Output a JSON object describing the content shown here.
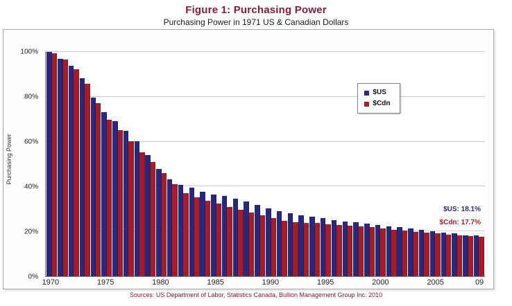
{
  "page": {
    "title": "Figure 1: Purchasing Power",
    "subtitle": "Purchasing Power in 1971 US & Canadian Dollars",
    "source": "Sources: US Department of Labor, Statistics Canada, Bullion Management Group Inc. 2010",
    "colors": {
      "title": "#8B1A33",
      "source": "#8B1A33"
    }
  },
  "chart_data": {
    "type": "bar",
    "title": "Figure 1: Purchasing Power",
    "subtitle": "Purchasing Power in 1971 US & Canadian Dollars",
    "xlabel": "",
    "ylabel": "Purchasing Power",
    "ylim": [
      0,
      100
    ],
    "grid": true,
    "legend_position": "upper-right",
    "y_ticks": [
      {
        "label": "0%",
        "value": 0
      },
      {
        "label": "20%",
        "value": 20
      },
      {
        "label": "40%",
        "value": 40
      },
      {
        "label": "60%",
        "value": 60
      },
      {
        "label": "80%",
        "value": 80
      },
      {
        "label": "100%",
        "value": 100
      }
    ],
    "categories": [
      "1970",
      "1971",
      "1972",
      "1973",
      "1974",
      "1975",
      "1976",
      "1977",
      "1978",
      "1979",
      "1980",
      "1981",
      "1982",
      "1983",
      "1984",
      "1985",
      "1986",
      "1987",
      "1988",
      "1989",
      "1990",
      "1991",
      "1992",
      "1993",
      "1994",
      "1995",
      "1996",
      "1997",
      "1998",
      "1999",
      "2000",
      "2001",
      "2002",
      "2003",
      "2004",
      "2005",
      "2006",
      "2007",
      "2008",
      "2009"
    ],
    "x_ticks": [
      {
        "label": "1970",
        "index": 0
      },
      {
        "label": "1975",
        "index": 5
      },
      {
        "label": "1980",
        "index": 10
      },
      {
        "label": "1985",
        "index": 15
      },
      {
        "label": "1990",
        "index": 20
      },
      {
        "label": "1995",
        "index": 25
      },
      {
        "label": "2000",
        "index": 30
      },
      {
        "label": "2005",
        "index": 35
      },
      {
        "label": "09",
        "index": 39
      }
    ],
    "series": [
      {
        "name": "$US",
        "color": "#28287E",
        "values": [
          100.0,
          96.9,
          93.9,
          88.4,
          79.6,
          73.0,
          69.0,
          64.8,
          60.2,
          54.1,
          47.7,
          43.2,
          40.7,
          39.4,
          37.8,
          36.5,
          35.9,
          34.6,
          33.2,
          31.7,
          30.1,
          28.9,
          28.0,
          27.2,
          26.6,
          25.8,
          25.1,
          24.5,
          24.2,
          23.6,
          22.9,
          22.2,
          21.9,
          21.4,
          20.8,
          20.2,
          19.5,
          19.0,
          18.3,
          18.1
        ]
      },
      {
        "name": "$Cdn",
        "color": "#A81C28",
        "values": [
          99.5,
          96.6,
          92.4,
          85.9,
          77.2,
          69.8,
          65.1,
          60.3,
          55.4,
          50.8,
          46.1,
          41.0,
          37.1,
          35.1,
          33.7,
          32.3,
          31.0,
          29.7,
          28.5,
          27.2,
          26.0,
          24.6,
          24.2,
          23.8,
          23.7,
          23.2,
          22.8,
          22.5,
          22.3,
          21.8,
          21.3,
          20.8,
          20.3,
          19.8,
          19.4,
          19.0,
          18.6,
          18.2,
          17.8,
          17.7
        ]
      }
    ],
    "annotations": [
      {
        "text": "$US: 18.1%",
        "color": "#28287E"
      },
      {
        "text": "$Cdn: 17.7%",
        "color": "#A81C28"
      }
    ]
  }
}
